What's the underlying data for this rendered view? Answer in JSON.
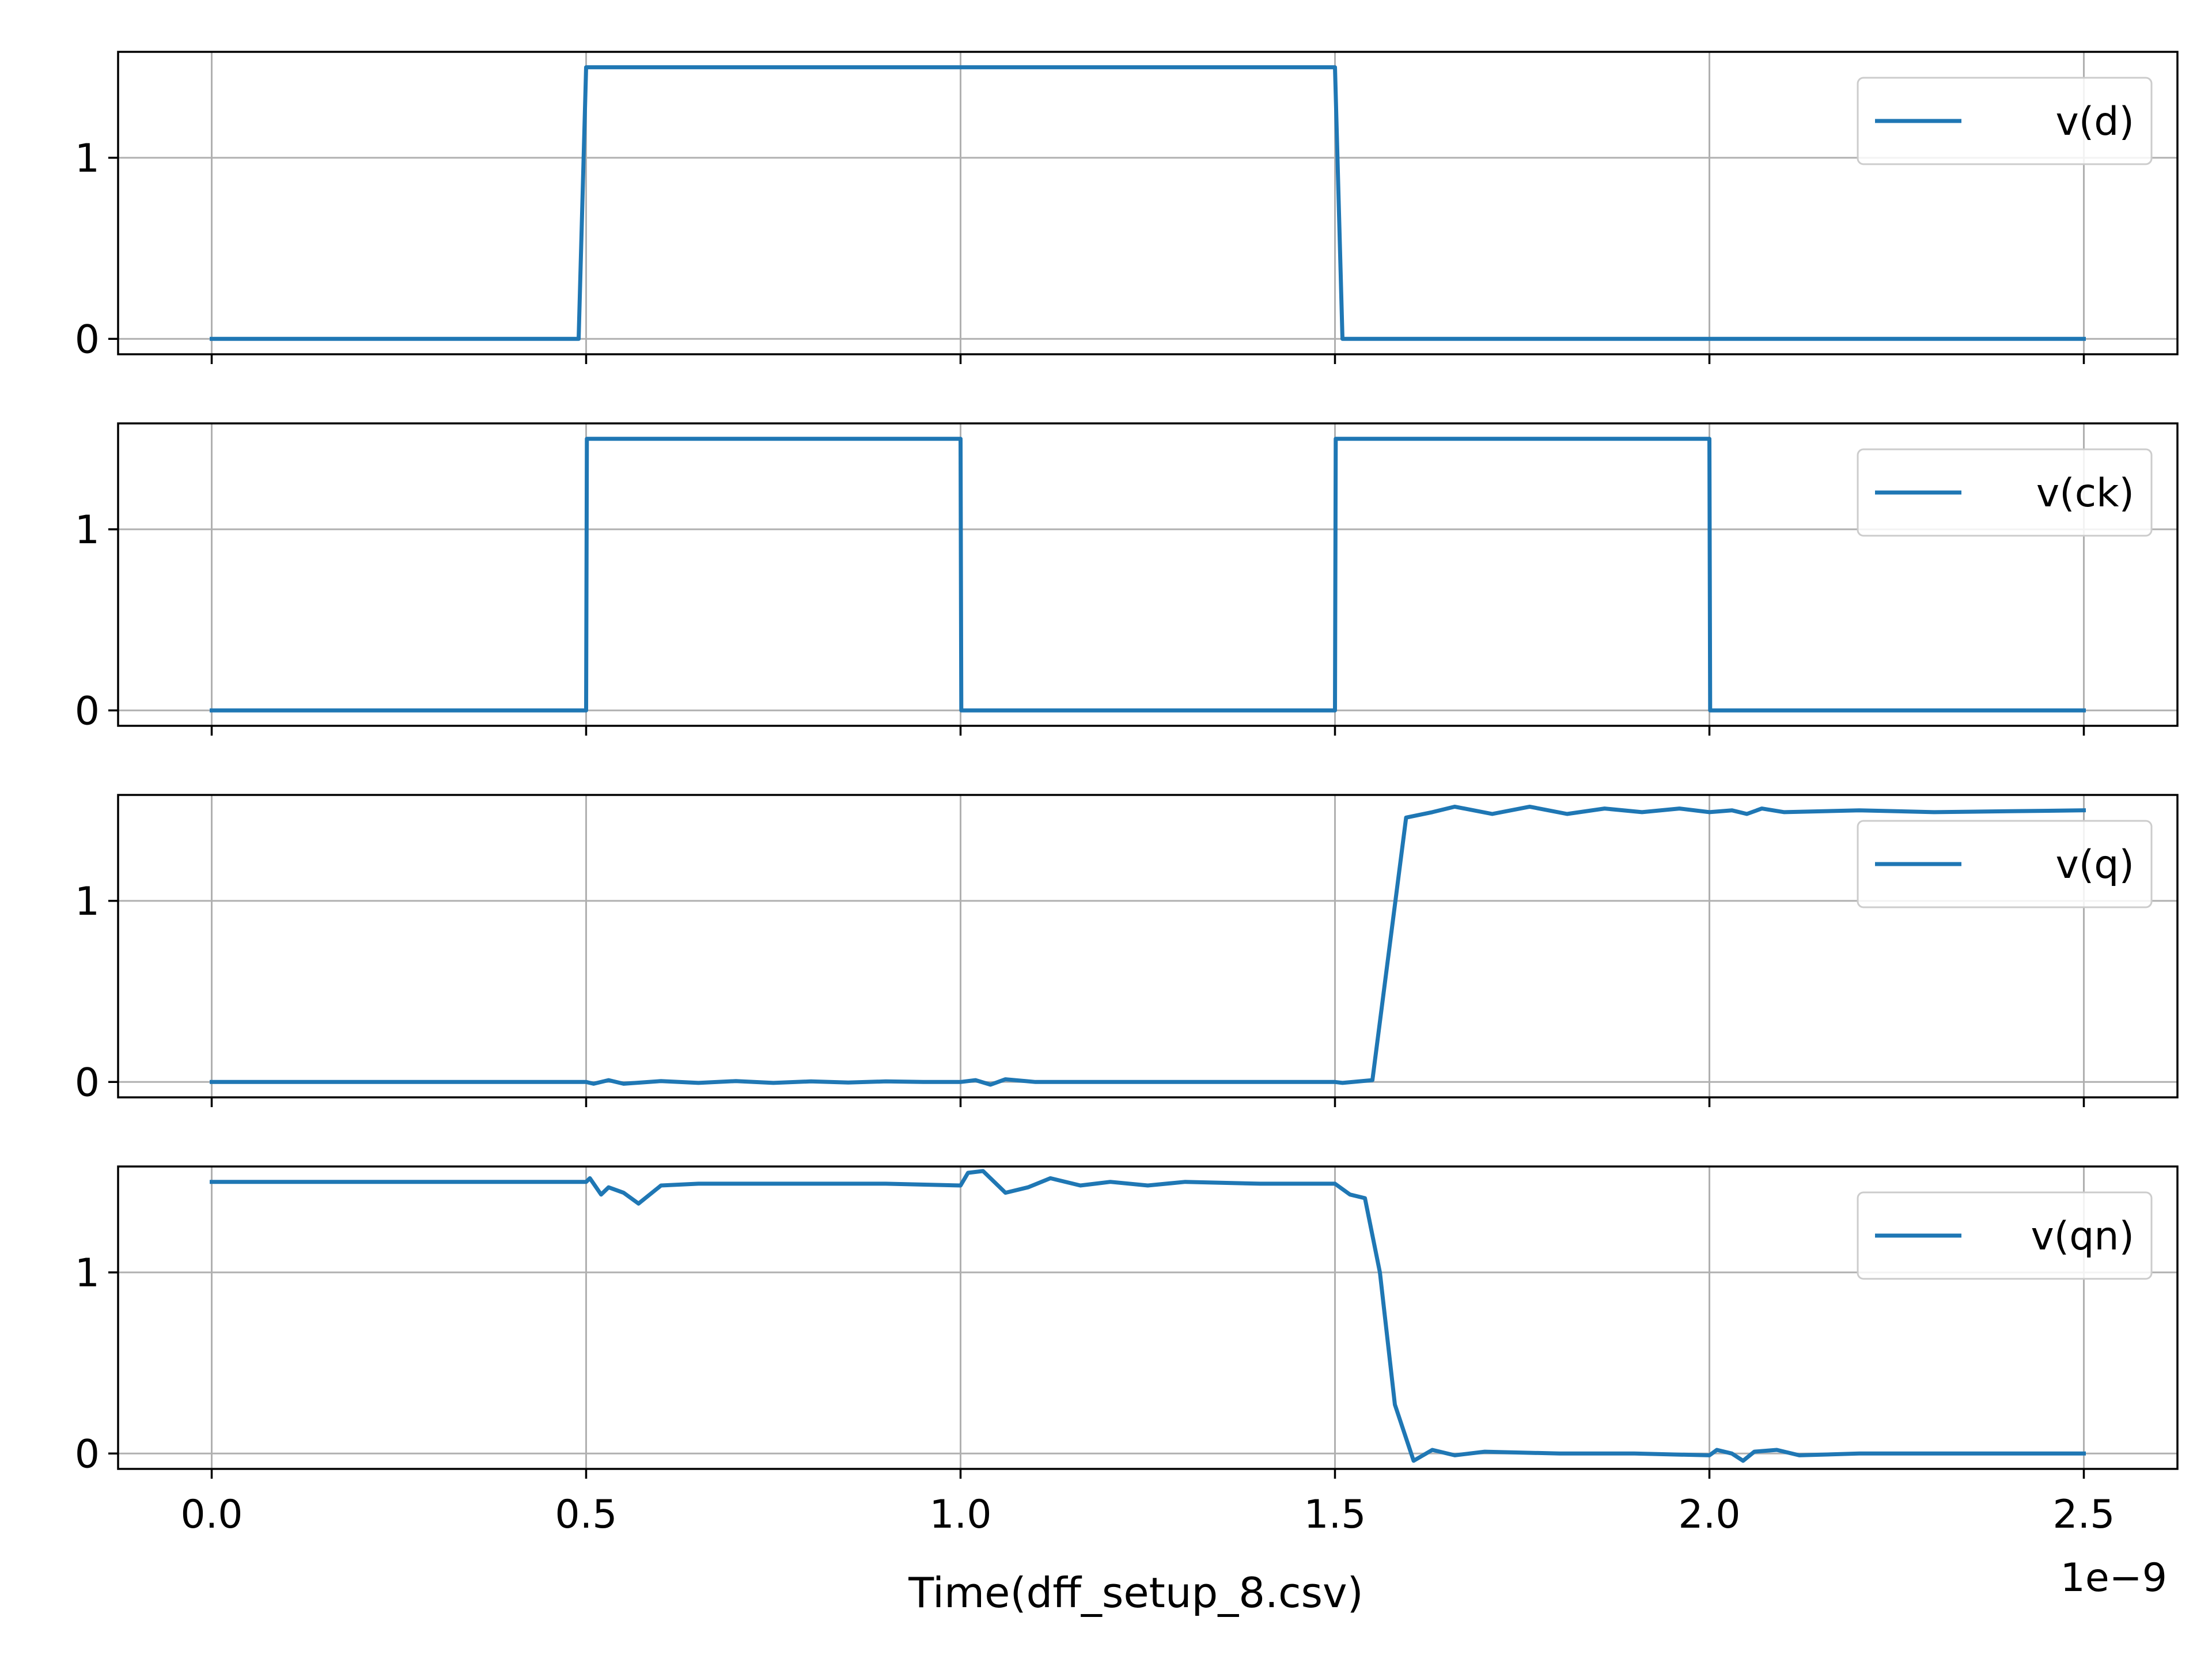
{
  "chart_data": {
    "type": "line",
    "layout": "4 stacked subplots, shared x-axis",
    "xlabel": "Time(dff_setup_8.csv)",
    "x_offset_label": "1e−9",
    "xlim": [
      -1.25e-10,
      2.625e-09
    ],
    "ylim": [
      -0.085,
      1.585
    ],
    "x_ticks": [
      0,
      5e-10,
      1e-09,
      1.5e-09,
      2e-09,
      2.5e-09
    ],
    "x_tick_labels": [
      "0.0",
      "0.5",
      "1.0",
      "1.5",
      "2.0",
      "2.5"
    ],
    "y_ticks": [
      0,
      1
    ],
    "y_tick_labels": [
      "0",
      "1"
    ],
    "grid": true,
    "legend_position": "upper right",
    "line_color": "#1f77b4",
    "subplots": [
      {
        "legend": "v(d)",
        "x": [
          0,
          4.9e-10,
          5e-10,
          1.5e-09,
          1.51e-09,
          2.5e-09
        ],
        "y": [
          0,
          0,
          1.5,
          1.5,
          0,
          0
        ]
      },
      {
        "legend": "v(ck)",
        "x": [
          0,
          5e-10,
          5.01e-10,
          1e-09,
          1.001e-09,
          1.5e-09,
          1.501e-09,
          2e-09,
          2.001e-09,
          2.5e-09
        ],
        "y": [
          0,
          0,
          1.5,
          1.5,
          0,
          0,
          1.5,
          1.5,
          0,
          0
        ]
      },
      {
        "legend": "v(q)",
        "x": [
          0,
          5e-10,
          5.1e-10,
          5.3e-10,
          5.5e-10,
          6e-10,
          6.5e-10,
          7e-10,
          7.5e-10,
          8e-10,
          8.5e-10,
          9e-10,
          9.5e-10,
          1e-09,
          1.02e-09,
          1.04e-09,
          1.06e-09,
          1.1e-09,
          1.2e-09,
          1.3e-09,
          1.4e-09,
          1.5e-09,
          1.51e-09,
          1.55e-09,
          1.595e-09,
          1.63e-09,
          1.66e-09,
          1.71e-09,
          1.76e-09,
          1.81e-09,
          1.86e-09,
          1.91e-09,
          1.96e-09,
          2e-09,
          2.03e-09,
          2.05e-09,
          2.07e-09,
          2.1e-09,
          2.2e-09,
          2.3e-09,
          2.4e-09,
          2.5e-09
        ],
        "y": [
          0,
          0,
          -0.01,
          0.01,
          -0.01,
          0.005,
          -0.005,
          0.005,
          -0.005,
          0.003,
          -0.003,
          0.003,
          0,
          0,
          0.01,
          -0.015,
          0.015,
          0,
          0,
          0,
          0,
          0,
          -0.005,
          0.01,
          1.46,
          1.49,
          1.52,
          1.48,
          1.52,
          1.48,
          1.51,
          1.49,
          1.51,
          1.49,
          1.5,
          1.48,
          1.51,
          1.49,
          1.5,
          1.49,
          1.495,
          1.5
        ]
      },
      {
        "legend": "v(qn)",
        "x": [
          0,
          5e-10,
          5.05e-10,
          5.2e-10,
          5.3e-10,
          5.5e-10,
          5.7e-10,
          6e-10,
          6.5e-10,
          7e-10,
          8e-10,
          9e-10,
          1e-09,
          1.01e-09,
          1.03e-09,
          1.06e-09,
          1.09e-09,
          1.12e-09,
          1.16e-09,
          1.2e-09,
          1.25e-09,
          1.3e-09,
          1.4e-09,
          1.5e-09,
          1.52e-09,
          1.54e-09,
          1.56e-09,
          1.58e-09,
          1.605e-09,
          1.63e-09,
          1.66e-09,
          1.7e-09,
          1.8e-09,
          1.9e-09,
          2e-09,
          2.01e-09,
          2.03e-09,
          2.045e-09,
          2.06e-09,
          2.09e-09,
          2.12e-09,
          2.2e-09,
          2.3e-09,
          2.4e-09,
          2.5e-09
        ],
        "y": [
          1.5,
          1.5,
          1.52,
          1.43,
          1.47,
          1.44,
          1.38,
          1.48,
          1.49,
          1.49,
          1.49,
          1.49,
          1.48,
          1.55,
          1.56,
          1.44,
          1.47,
          1.52,
          1.48,
          1.5,
          1.48,
          1.5,
          1.49,
          1.49,
          1.43,
          1.41,
          1.0,
          0.27,
          -0.04,
          0.02,
          -0.01,
          0.01,
          0,
          0,
          -0.01,
          0.02,
          0,
          -0.04,
          0.01,
          0.02,
          -0.01,
          0,
          0,
          0,
          0
        ]
      }
    ]
  }
}
